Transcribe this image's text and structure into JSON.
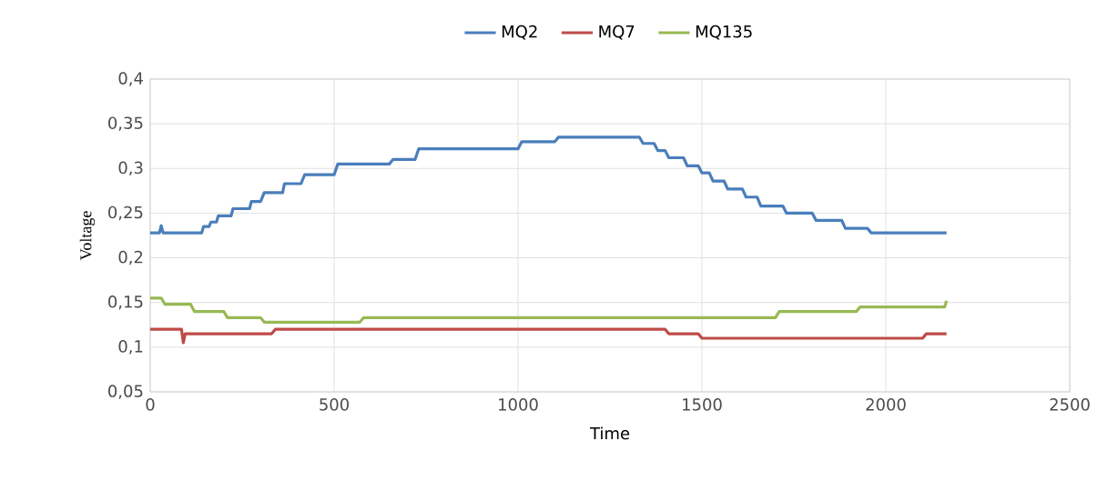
{
  "chart_data": {
    "type": "line",
    "xlabel": "Time",
    "ylabel": "Voltage",
    "xlim": [
      0,
      2500
    ],
    "ylim": [
      0.05,
      0.4
    ],
    "xticks": [
      0,
      500,
      1000,
      1500,
      2000,
      2500
    ],
    "yticks": [
      {
        "value": 0.05,
        "label": "0,05"
      },
      {
        "value": 0.1,
        "label": "0,1"
      },
      {
        "value": 0.15,
        "label": "0,15"
      },
      {
        "value": 0.2,
        "label": "0,2"
      },
      {
        "value": 0.25,
        "label": "0,25"
      },
      {
        "value": 0.3,
        "label": "0,3"
      },
      {
        "value": 0.35,
        "label": "0,35"
      },
      {
        "value": 0.4,
        "label": "0,4"
      }
    ],
    "grid": true,
    "legend": "top",
    "marker": "none",
    "line_style": "solid",
    "series": [
      {
        "name": "MQ2",
        "color": "#4a7ebb",
        "x": [
          0,
          25,
          30,
          35,
          140,
          145,
          160,
          165,
          180,
          185,
          220,
          225,
          270,
          275,
          300,
          310,
          360,
          365,
          410,
          420,
          500,
          510,
          650,
          660,
          720,
          730,
          1000,
          1010,
          1100,
          1110,
          1330,
          1340,
          1370,
          1380,
          1400,
          1410,
          1450,
          1460,
          1490,
          1500,
          1520,
          1530,
          1560,
          1570,
          1610,
          1620,
          1650,
          1660,
          1720,
          1730,
          1800,
          1810,
          1880,
          1890,
          1950,
          1960,
          2165
        ],
        "values": [
          0.228,
          0.228,
          0.236,
          0.228,
          0.228,
          0.235,
          0.235,
          0.24,
          0.24,
          0.247,
          0.247,
          0.255,
          0.255,
          0.263,
          0.263,
          0.273,
          0.273,
          0.283,
          0.283,
          0.293,
          0.293,
          0.305,
          0.305,
          0.31,
          0.31,
          0.322,
          0.322,
          0.33,
          0.33,
          0.335,
          0.335,
          0.328,
          0.328,
          0.32,
          0.32,
          0.312,
          0.312,
          0.303,
          0.303,
          0.295,
          0.295,
          0.286,
          0.286,
          0.277,
          0.277,
          0.268,
          0.268,
          0.258,
          0.258,
          0.25,
          0.25,
          0.242,
          0.242,
          0.233,
          0.233,
          0.228,
          0.228
        ]
      },
      {
        "name": "MQ7",
        "color": "#be4b48",
        "x": [
          0,
          85,
          90,
          95,
          100,
          330,
          340,
          1400,
          1410,
          1490,
          1500,
          2100,
          2110,
          2165
        ],
        "values": [
          0.12,
          0.12,
          0.105,
          0.115,
          0.115,
          0.115,
          0.12,
          0.12,
          0.115,
          0.115,
          0.11,
          0.11,
          0.115,
          0.115
        ]
      },
      {
        "name": "MQ135",
        "color": "#98b954",
        "x": [
          0,
          30,
          40,
          110,
          120,
          200,
          210,
          300,
          310,
          570,
          580,
          1600,
          1700,
          1710,
          1920,
          1930,
          2160,
          2165
        ],
        "values": [
          0.155,
          0.155,
          0.148,
          0.148,
          0.14,
          0.14,
          0.133,
          0.133,
          0.128,
          0.128,
          0.133,
          0.133,
          0.133,
          0.14,
          0.14,
          0.145,
          0.145,
          0.152
        ]
      }
    ]
  }
}
